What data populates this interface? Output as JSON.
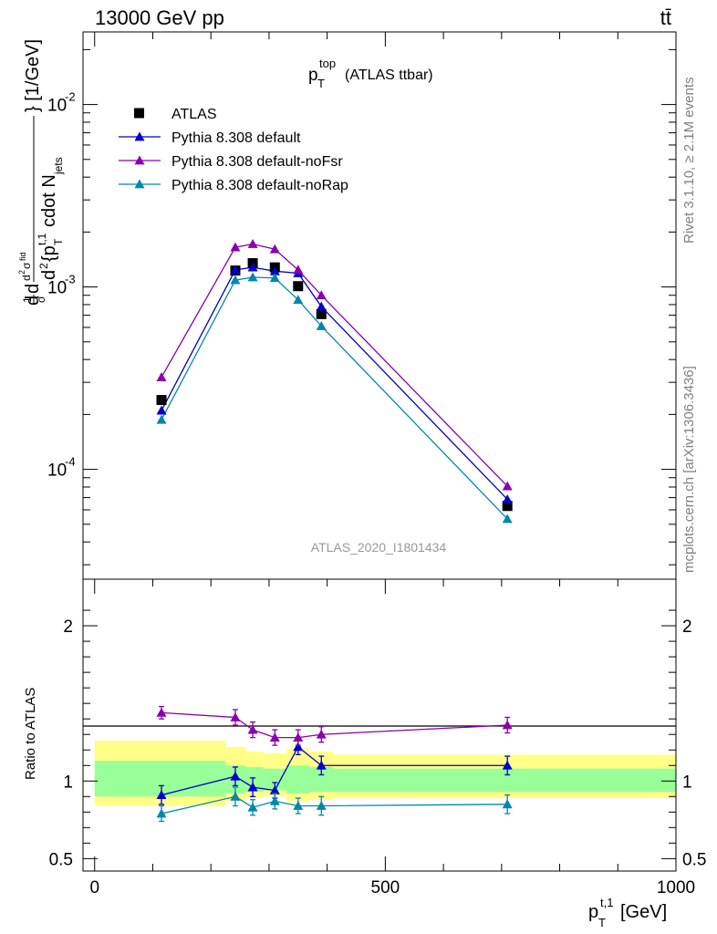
{
  "header": {
    "left": "13000 GeV pp",
    "right": "tt̄"
  },
  "side_labels": {
    "rivet": "Rivet 3.1.10, ≥ 2.1M events",
    "mcplots": "mcplots.cern.ch [arXiv:1306.3436]"
  },
  "colors": {
    "atlas": "#000000",
    "default": "#0000cc",
    "noFsr": "#8a00b0",
    "noRap": "#0088aa",
    "band_inner": "#99ff99",
    "band_outer": "#ffff88"
  },
  "chart_data": [
    {
      "type": "line",
      "panel": "main",
      "title": "p_T^top (ATLAS ttbar)",
      "watermark": "ATLAS_2020_I1801434",
      "ylabel": "d(1/σ)dσ^fid / d^2{p_T^t,1 cdot N_jets} [1/GeV]",
      "yscale": "log",
      "ylim": [
        2.5e-05,
        0.025
      ],
      "xlim": [
        -20,
        1000
      ],
      "y_ticks": [
        {
          "value": 0.0001,
          "label": "10",
          "exp": "-4"
        },
        {
          "value": 0.001,
          "label": "10",
          "exp": "-3"
        },
        {
          "value": 0.01,
          "label": "10",
          "exp": "-2"
        }
      ],
      "legend_position": "top-left",
      "x": [
        115,
        242,
        272,
        310,
        350,
        390,
        710
      ],
      "series": [
        {
          "name": "ATLAS",
          "marker": "square",
          "color": "#000000",
          "line": false,
          "values": [
            0.00024,
            0.00123,
            0.00135,
            0.00128,
            0.00101,
            0.00071,
            6.3e-05
          ]
        },
        {
          "name": "Pythia 8.308 default",
          "marker": "triangle",
          "color": "#0000cc",
          "line": true,
          "values": [
            0.00021,
            0.00124,
            0.00128,
            0.00122,
            0.00119,
            0.00078,
            6.85e-05
          ]
        },
        {
          "name": "Pythia 8.308 default-noFsr",
          "marker": "triangle",
          "color": "#8a00b0",
          "line": true,
          "values": [
            0.00032,
            0.00165,
            0.00172,
            0.00161,
            0.00124,
            0.0009,
            8.08e-05
          ]
        },
        {
          "name": "Pythia 8.308 default-noRap",
          "marker": "triangle",
          "color": "#0088aa",
          "line": true,
          "values": [
            0.000187,
            0.00109,
            0.00113,
            0.00112,
            0.00085,
            0.00061,
            5.35e-05
          ]
        }
      ]
    },
    {
      "type": "line",
      "panel": "ratio",
      "ylabel": "Ratio to ATLAS",
      "xlabel": "p_T^t,1 [GeV]",
      "ylim": [
        0.42,
        2.3
      ],
      "xlim": [
        -20,
        1000
      ],
      "y_ticks": [
        {
          "value": 0.5,
          "label": "0.5"
        },
        {
          "value": 1,
          "label": "1"
        },
        {
          "value": 2,
          "label": "2"
        }
      ],
      "x_ticks": [
        {
          "value": 0,
          "label": "0"
        },
        {
          "value": 500,
          "label": "500"
        },
        {
          "value": 1000,
          "label": "1000"
        }
      ],
      "bands": [
        {
          "x0": 0,
          "x1": 225,
          "outer": [
            0.84,
            1.26
          ],
          "inner": [
            0.9,
            1.13
          ]
        },
        {
          "x0": 225,
          "x1": 260,
          "outer": [
            0.87,
            1.22
          ],
          "inner": [
            0.92,
            1.1
          ]
        },
        {
          "x0": 260,
          "x1": 290,
          "outer": [
            0.89,
            1.19
          ],
          "inner": [
            0.93,
            1.09
          ]
        },
        {
          "x0": 290,
          "x1": 330,
          "outer": [
            0.9,
            1.18
          ],
          "inner": [
            0.94,
            1.08
          ]
        },
        {
          "x0": 330,
          "x1": 370,
          "outer": [
            0.87,
            1.21
          ],
          "inner": [
            0.92,
            1.1
          ]
        },
        {
          "x0": 370,
          "x1": 410,
          "outer": [
            0.88,
            1.19
          ],
          "inner": [
            0.93,
            1.09
          ]
        },
        {
          "x0": 410,
          "x1": 1000,
          "outer": [
            0.89,
            1.17
          ],
          "inner": [
            0.93,
            1.08
          ]
        }
      ],
      "x": [
        115,
        242,
        272,
        310,
        350,
        390,
        710
      ],
      "series": [
        {
          "name": "Pythia 8.308 default",
          "color": "#0000cc",
          "values": [
            0.91,
            1.03,
            0.96,
            0.94,
            1.22,
            1.1,
            1.1
          ],
          "errors": [
            0.06,
            0.06,
            0.06,
            0.05,
            0.05,
            0.06,
            0.06
          ]
        },
        {
          "name": "Pythia 8.308 default-noFsr",
          "color": "#8a00b0",
          "values": [
            1.44,
            1.41,
            1.33,
            1.28,
            1.28,
            1.3,
            1.36
          ],
          "errors": [
            0.04,
            0.05,
            0.05,
            0.05,
            0.05,
            0.05,
            0.05
          ]
        },
        {
          "name": "Pythia 8.308 default-noRap",
          "color": "#0088aa",
          "values": [
            0.79,
            0.9,
            0.83,
            0.87,
            0.84,
            0.84,
            0.85
          ],
          "errors": [
            0.05,
            0.06,
            0.05,
            0.05,
            0.05,
            0.06,
            0.06
          ]
        }
      ]
    }
  ]
}
